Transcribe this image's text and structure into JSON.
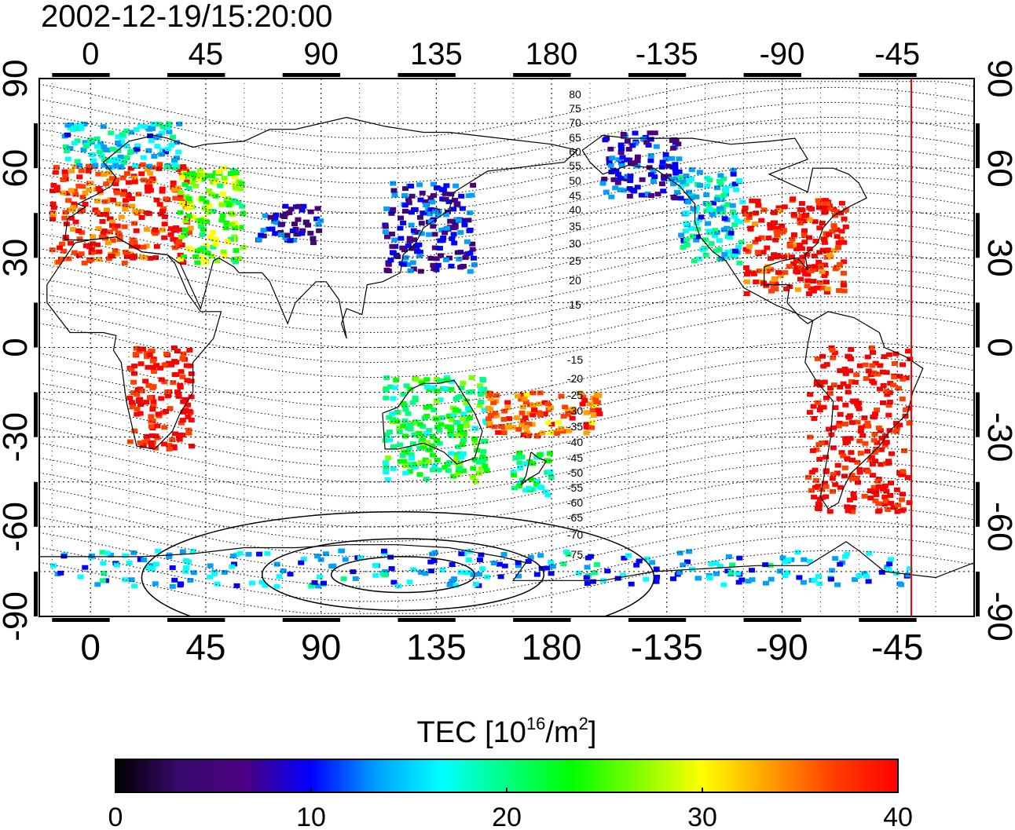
{
  "title": "2002-12-19/15:20:00",
  "longitude_ticks": [
    "0",
    "45",
    "90",
    "135",
    "180",
    "-135",
    "-90",
    "-45"
  ],
  "latitude_ticks": [
    "90",
    "60",
    "30",
    "0",
    "-30",
    "-60",
    "-90"
  ],
  "magnetic_latitude_labels_north": [
    "80",
    "75",
    "70",
    "65",
    "60",
    "55",
    "50",
    "45",
    "40",
    "35",
    "30",
    "25",
    "20",
    "15"
  ],
  "magnetic_latitude_labels_south": [
    "-15",
    "-20",
    "-25",
    "-30",
    "-35",
    "-40",
    "-45",
    "-50",
    "-55",
    "-60",
    "-65",
    "-70",
    "-75"
  ],
  "colorbar": {
    "label_prefix": "TEC  [10",
    "label_exp1": "16",
    "label_mid": "/m",
    "label_exp2": "2",
    "label_suffix": "]",
    "ticks": [
      "0",
      "10",
      "20",
      "30",
      "40"
    ],
    "range": [
      0,
      40
    ],
    "colors": [
      "#000000",
      "#3a0a6e",
      "#4b0082",
      "#0000ff",
      "#00a0ff",
      "#00ffff",
      "#00ff80",
      "#00ff00",
      "#80ff00",
      "#ffff00",
      "#ffa000",
      "#ff4000",
      "#ff0000"
    ]
  },
  "map": {
    "lon_range": [
      -20,
      345
    ],
    "lat_range": [
      -90,
      90
    ],
    "terminator_longitude_label": "-45",
    "terminator_color": "#ff0000",
    "tec_regions": [
      {
        "name": "europe",
        "lon": [
          -15,
          40
        ],
        "lat": [
          28,
          62
        ],
        "tec": 38
      },
      {
        "name": "scandinavia",
        "lon": [
          -10,
          35
        ],
        "lat": [
          60,
          75
        ],
        "tec": 16
      },
      {
        "name": "eastern-europe",
        "lon": [
          35,
          60
        ],
        "lat": [
          28,
          60
        ],
        "tec": 26
      },
      {
        "name": "central-asia",
        "lon": [
          65,
          90
        ],
        "lat": [
          35,
          48
        ],
        "tec": 8
      },
      {
        "name": "east-asia",
        "lon": [
          115,
          150
        ],
        "lat": [
          25,
          55
        ],
        "tec": 9
      },
      {
        "name": "alaska",
        "lon": [
          200,
          230
        ],
        "lat": [
          50,
          72
        ],
        "tec": 10
      },
      {
        "name": "canada-west",
        "lon": [
          230,
          255
        ],
        "lat": [
          28,
          60
        ],
        "tec": 16
      },
      {
        "name": "north-america",
        "lon": [
          255,
          295
        ],
        "lat": [
          18,
          50
        ],
        "tec": 39
      },
      {
        "name": "south-america",
        "lon": [
          280,
          320
        ],
        "lat": [
          -55,
          0
        ],
        "tec": 40
      },
      {
        "name": "southern-africa",
        "lon": [
          15,
          40
        ],
        "lat": [
          -35,
          0
        ],
        "tec": 40
      },
      {
        "name": "australia",
        "lon": [
          115,
          155
        ],
        "lat": [
          -45,
          -10
        ],
        "tec": 22
      },
      {
        "name": "new-zealand",
        "lon": [
          165,
          180
        ],
        "lat": [
          -50,
          -35
        ],
        "tec": 20
      },
      {
        "name": "pacific-sw",
        "lon": [
          155,
          200
        ],
        "lat": [
          -30,
          -15
        ],
        "tec": 36
      },
      {
        "name": "antarctica-rim",
        "lon": [
          -15,
          320
        ],
        "lat": [
          -80,
          -68
        ],
        "tec": 14
      }
    ]
  }
}
